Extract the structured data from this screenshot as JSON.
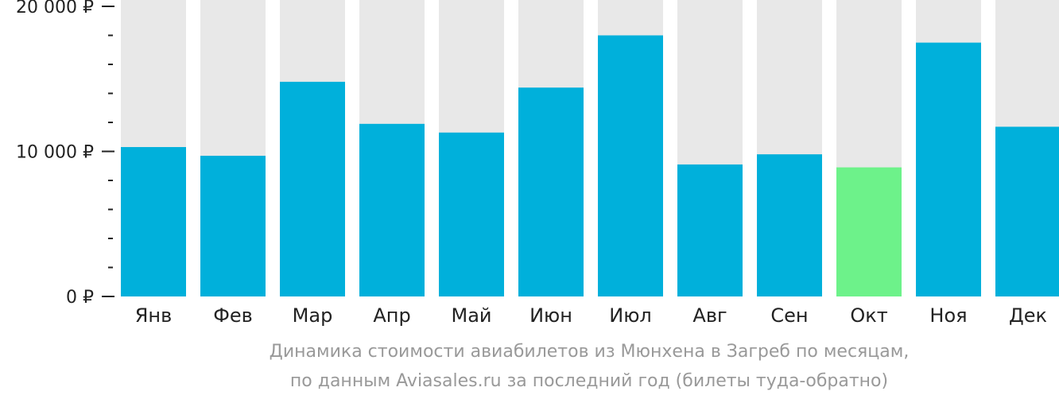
{
  "chart_data": {
    "type": "bar",
    "categories": [
      "Янв",
      "Фев",
      "Мар",
      "Апр",
      "Май",
      "Июн",
      "Июл",
      "Авг",
      "Сен",
      "Окт",
      "Ноя",
      "Дек"
    ],
    "values": [
      10300,
      9700,
      14800,
      11900,
      11300,
      14400,
      18000,
      9100,
      9800,
      8900,
      17500,
      11700
    ],
    "highlight_index": 9,
    "ylim": [
      0,
      20000
    ],
    "yticks": [
      {
        "value": 0,
        "label": "0 ₽"
      },
      {
        "value": 10000,
        "label": "10 000 ₽"
      },
      {
        "value": 20000,
        "label": "20 000 ₽"
      }
    ],
    "minor_tick_step": 2000,
    "caption_line1": "Динамика стоимости авиабилетов из Мюнхена в Загреб по месяцам,",
    "caption_line2": "по данным Aviasales.ru за последний год (билеты туда-обратно)",
    "colors": {
      "bar": "#00b0db",
      "highlight": "#6df28a",
      "background_bar": "#e8e8e8",
      "axis": "#222222",
      "caption": "#999999"
    }
  }
}
